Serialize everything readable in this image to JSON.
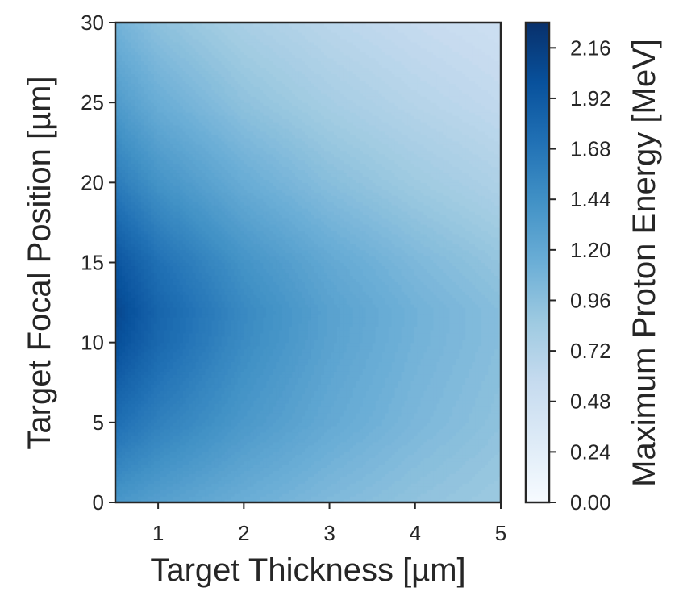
{
  "chart_data": {
    "type": "heatmap",
    "subtype": "filled-contour",
    "title": "",
    "xlabel": "Target Thickness [µm]",
    "ylabel": "Target Focal Position [µm]",
    "xlim": [
      0.5,
      5
    ],
    "ylim": [
      0,
      30
    ],
    "xticks": [
      1,
      2,
      3,
      4,
      5
    ],
    "xtick_labels": [
      "1",
      "2",
      "3",
      "4",
      "5"
    ],
    "yticks": [
      0,
      5,
      10,
      15,
      20,
      25,
      30
    ],
    "ytick_labels": [
      "0",
      "5",
      "10",
      "15",
      "20",
      "25",
      "30"
    ],
    "colorbar": {
      "label": "Maximum Proton Energy [MeV]",
      "range": [
        0.0,
        2.28
      ],
      "ticks": [
        0.0,
        0.24,
        0.48,
        0.72,
        0.96,
        1.2,
        1.44,
        1.68,
        1.92,
        2.16
      ],
      "tick_labels": [
        "0.00",
        "0.24",
        "0.48",
        "0.72",
        "0.96",
        "1.20",
        "1.44",
        "1.68",
        "1.92",
        "2.16"
      ],
      "colormap": "Blues"
    },
    "x": [
      0.5,
      1.0,
      2.0,
      3.0,
      4.0,
      5.0
    ],
    "y": [
      0,
      5,
      10,
      12,
      15,
      20,
      25,
      30
    ],
    "z": [
      [
        1.37,
        1.28,
        1.14,
        1.02,
        0.93,
        0.86
      ],
      [
        1.73,
        1.58,
        1.36,
        1.19,
        1.05,
        0.94
      ],
      [
        2.02,
        1.79,
        1.48,
        1.26,
        1.1,
        0.98
      ],
      [
        2.08,
        1.82,
        1.5,
        1.27,
        1.11,
        0.98
      ],
      [
        1.96,
        1.72,
        1.41,
        1.2,
        1.04,
        0.91
      ],
      [
        1.62,
        1.41,
        1.16,
        0.98,
        0.85,
        0.74
      ],
      [
        1.33,
        1.15,
        0.94,
        0.8,
        0.69,
        0.6
      ],
      [
        1.1,
        0.95,
        0.78,
        0.66,
        0.57,
        0.5
      ]
    ],
    "grid": false,
    "legend": "none"
  }
}
